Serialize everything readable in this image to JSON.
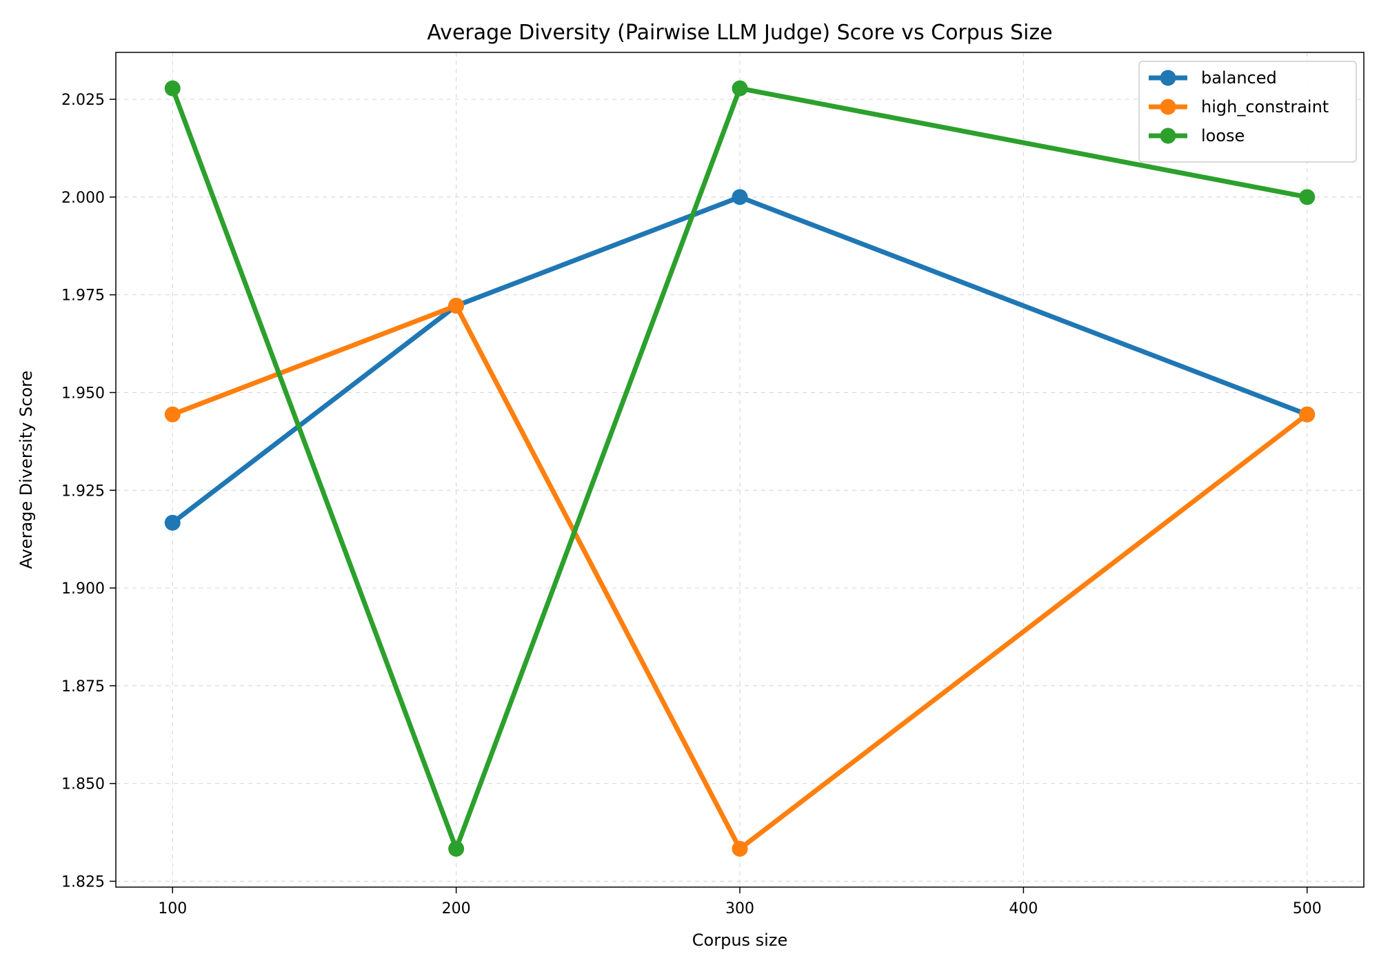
{
  "chart_data": {
    "type": "line",
    "title": "Average Diversity (Pairwise LLM Judge) Score vs Corpus Size",
    "xlabel": "Corpus size",
    "ylabel": "Average Diversity Score",
    "xlim": [
      80,
      520
    ],
    "ylim": [
      1.8235,
      2.037
    ],
    "x_ticks": [
      100,
      200,
      300,
      400,
      500
    ],
    "y_ticks": [
      1.825,
      1.85,
      1.875,
      1.9,
      1.925,
      1.95,
      1.975,
      2.0,
      2.025
    ],
    "grid": true,
    "legend_position": "top-right",
    "series": [
      {
        "name": "balanced",
        "color": "#1f77b4",
        "x": [
          100,
          200,
          300,
          500
        ],
        "values": [
          1.9167,
          1.9722,
          2.0,
          1.9444
        ]
      },
      {
        "name": "high_constraint",
        "color": "#ff7f0e",
        "x": [
          100,
          200,
          300,
          500
        ],
        "values": [
          1.9444,
          1.9722,
          1.8333,
          1.9444
        ]
      },
      {
        "name": "loose",
        "color": "#2ca02c",
        "x": [
          100,
          200,
          300,
          500
        ],
        "values": [
          2.0278,
          1.8333,
          2.0278,
          2.0
        ]
      }
    ]
  }
}
